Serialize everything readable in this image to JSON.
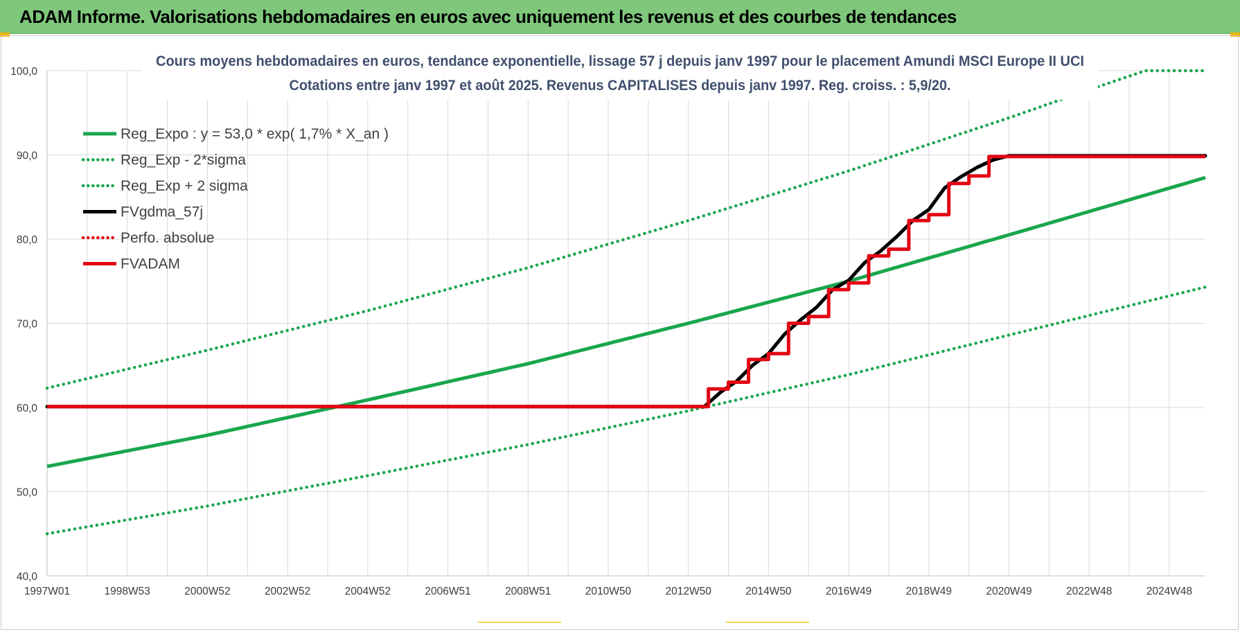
{
  "header": {
    "title": "ADAM Informe. Valorisations hebdomadaires en euros avec uniquement les revenus et des courbes de tendances"
  },
  "colors": {
    "banner": "#7ec77b",
    "green": "#19a64d",
    "red": "#e30613",
    "black": "#000000",
    "grid": "#d9d9d9"
  },
  "chart_data": {
    "type": "line",
    "title": "Cours moyens hebdomadaires en euros, tendance exponentielle, lissage 57 j depuis janv 1997 pour le placement Amundi MSCI Europe II UCI",
    "subtitle": "Cotations entre janv 1997 et août 2025. Revenus CAPITALISES depuis janv 1997. Reg. croiss. : 5,9/20.",
    "xlabel": "",
    "ylabel": "",
    "x_range": [
      1997.0,
      2025.9
    ],
    "ylim": [
      40,
      100
    ],
    "y_ticks": [
      "40,0",
      "50,0",
      "60,0",
      "70,0",
      "80,0",
      "90,0",
      "100,0"
    ],
    "x_ticks": [
      {
        "label": "1997W01",
        "x": 1997.0
      },
      {
        "label": "1998W53",
        "x": 1999.0
      },
      {
        "label": "2000W52",
        "x": 2001.0
      },
      {
        "label": "2002W52",
        "x": 2003.0
      },
      {
        "label": "2004W52",
        "x": 2005.0
      },
      {
        "label": "2006W51",
        "x": 2007.0
      },
      {
        "label": "2008W51",
        "x": 2009.0
      },
      {
        "label": "2010W50",
        "x": 2011.0
      },
      {
        "label": "2012W50",
        "x": 2013.0
      },
      {
        "label": "2014W50",
        "x": 2015.0
      },
      {
        "label": "2016W49",
        "x": 2017.0
      },
      {
        "label": "2018W49",
        "x": 2019.0
      },
      {
        "label": "2020W49",
        "x": 2021.0
      },
      {
        "label": "2022W48",
        "x": 2023.0
      },
      {
        "label": "2024W48",
        "x": 2025.0
      }
    ],
    "grid": true,
    "legend_position": "top-left",
    "series": [
      {
        "name": "Reg_Expo : y = 53,0 * exp( 1,7% *  X_an )",
        "style": "solid",
        "color": "#19a64d",
        "x": [
          1997.0,
          2001.0,
          2005.0,
          2009.0,
          2013.0,
          2017.0,
          2021.0,
          2025.9
        ],
        "values": [
          53.0,
          56.7,
          60.9,
          65.2,
          70.0,
          75.0,
          80.5,
          87.3
        ]
      },
      {
        "name": "Reg_Exp - 2*sigma",
        "style": "dotted",
        "color": "#19a64d",
        "x": [
          1997.0,
          2001.0,
          2005.0,
          2009.0,
          2013.0,
          2017.0,
          2021.0,
          2025.9
        ],
        "values": [
          45.0,
          48.3,
          51.9,
          55.6,
          59.6,
          63.9,
          68.6,
          74.3
        ]
      },
      {
        "name": "Reg_Exp + 2 sigma",
        "style": "dotted",
        "color": "#19a64d",
        "x": [
          1997.0,
          2001.0,
          2005.0,
          2009.0,
          2013.0,
          2017.0,
          2021.0,
          2023.1,
          2024.4,
          2025.9
        ],
        "values": [
          62.3,
          66.8,
          71.5,
          76.6,
          82.2,
          88.1,
          94.4,
          97.9,
          100.0,
          100.0
        ]
      },
      {
        "name": "FVgdma_57j",
        "style": "solid",
        "color": "#000000",
        "x": [
          1997.0,
          2013.4,
          2013.8,
          2014.2,
          2014.6,
          2015.0,
          2015.4,
          2015.8,
          2016.2,
          2016.6,
          2017.0,
          2017.4,
          2017.8,
          2018.2,
          2018.6,
          2019.0,
          2019.4,
          2019.8,
          2020.2,
          2020.6,
          2021.0,
          2025.9
        ],
        "values": [
          60.1,
          60.1,
          61.8,
          63.1,
          65.0,
          66.4,
          68.7,
          70.4,
          71.9,
          74.0,
          75.1,
          77.2,
          78.6,
          80.3,
          82.2,
          83.5,
          86.1,
          87.4,
          88.5,
          89.4,
          89.9,
          89.9
        ]
      },
      {
        "name": "Perfo. absolue",
        "style": "dotted",
        "color": "#e30613",
        "x": [],
        "values": []
      },
      {
        "name": "FVADAM",
        "style": "solid",
        "color": "#e30613",
        "step": true,
        "x": [
          1997.0,
          2013.5,
          2013.5,
          2014.0,
          2014.0,
          2014.5,
          2014.5,
          2015.0,
          2015.0,
          2015.5,
          2015.5,
          2016.0,
          2016.0,
          2016.5,
          2016.5,
          2017.0,
          2017.0,
          2017.5,
          2017.5,
          2018.0,
          2018.0,
          2018.5,
          2018.5,
          2019.0,
          2019.0,
          2019.5,
          2019.5,
          2020.0,
          2020.0,
          2020.5,
          2020.5,
          2025.9
        ],
        "values": [
          60.1,
          60.1,
          62.2,
          62.2,
          63.0,
          63.0,
          65.7,
          65.7,
          66.4,
          66.4,
          70.0,
          70.0,
          70.8,
          70.8,
          74.0,
          74.0,
          74.8,
          74.8,
          78.0,
          78.0,
          78.8,
          78.8,
          82.2,
          82.2,
          82.9,
          82.9,
          86.6,
          86.6,
          87.5,
          87.5,
          89.8,
          89.8
        ]
      }
    ]
  }
}
